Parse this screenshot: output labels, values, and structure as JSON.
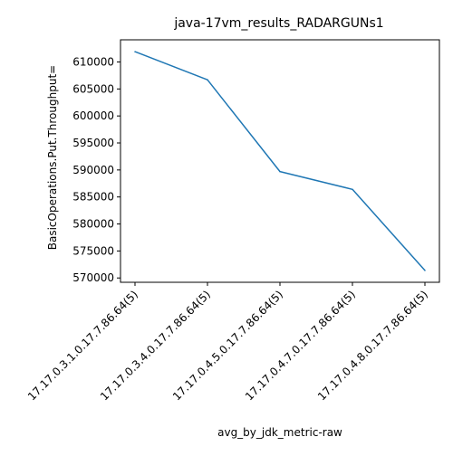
{
  "chart_data": {
    "type": "line",
    "title": "java-17vm_results_RADARGUNs1",
    "xlabel": "avg_by_jdk_metric-raw",
    "ylabel": "BasicOperations.Put.Throughput=",
    "categories": [
      "17.17.0.3.1.0.17.7.86.64(5)",
      "17.17.0.3.4.0.17.7.86.64(5)",
      "17.17.0.4.5.0.17.7.86.64(5)",
      "17.17.0.4.7.0.17.7.86.64(5)",
      "17.17.0.4.8.0.17.7.86.64(5)"
    ],
    "series": [
      {
        "values": [
          611900,
          606700,
          589700,
          586400,
          571400
        ],
        "color": "#1f77b4"
      }
    ],
    "ylim": [
      569200,
      614100
    ],
    "yticks": [
      570000,
      575000,
      580000,
      585000,
      590000,
      595000,
      600000,
      605000,
      610000
    ],
    "grid": false,
    "legend": "none"
  }
}
